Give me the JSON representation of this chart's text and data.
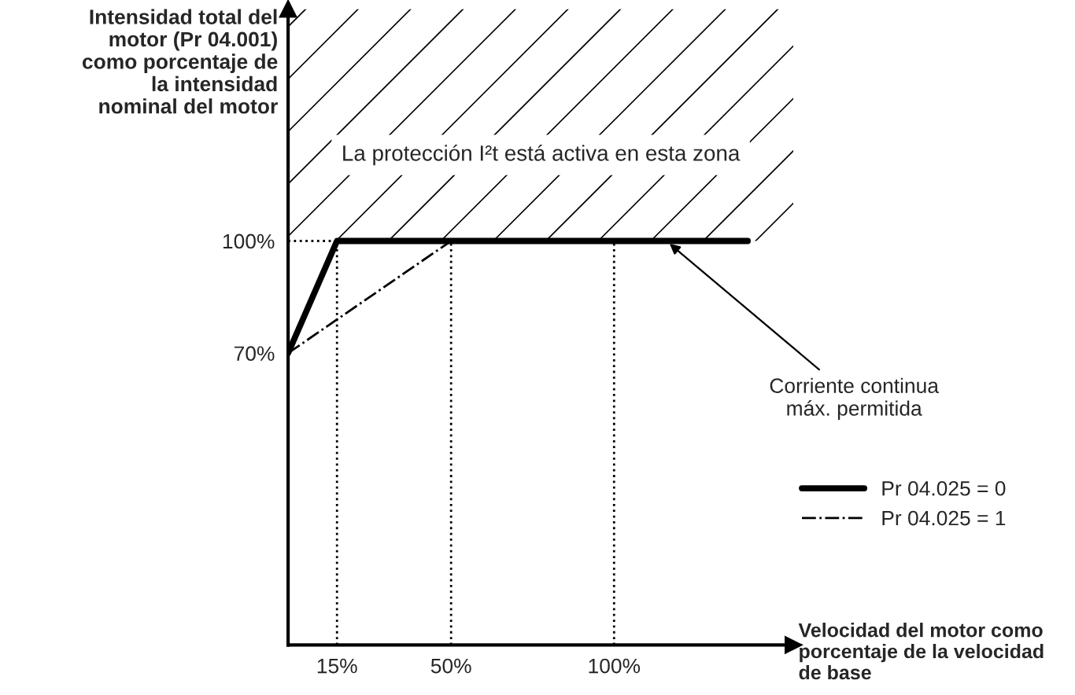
{
  "chart_data": {
    "type": "line",
    "xlabel": "Velocidad del motor como\nporcentaje de la velocidad\nde base",
    "ylabel": "Intensidad total del\nmotor (Pr 04.001)\ncomo porcentaje de\nla intensidad\nnominal del motor",
    "xlim": [
      0,
      155
    ],
    "ylim": [
      -8,
      162
    ],
    "xticks": [
      {
        "value": 15,
        "label": "15%"
      },
      {
        "value": 50,
        "label": "50%"
      },
      {
        "value": 100,
        "label": "100%"
      }
    ],
    "yticks": [
      {
        "value": 70,
        "label": "70%"
      },
      {
        "value": 100,
        "label": "100%"
      }
    ],
    "series": [
      {
        "name": "Pr 04.025 = 0",
        "color": "#000000",
        "line_style": "solid",
        "x": [
          0,
          15,
          141
        ],
        "values": [
          70,
          100,
          100
        ]
      },
      {
        "name": "Pr 04.025 = 1",
        "color": "#000000",
        "line_style": "dashdot",
        "x": [
          0,
          50
        ],
        "values": [
          70,
          100
        ]
      }
    ],
    "ref_lines": [
      {
        "axis": "x",
        "value": 15,
        "line_style": "dotted"
      },
      {
        "axis": "x",
        "value": 50,
        "line_style": "dotted"
      },
      {
        "axis": "x",
        "value": 100,
        "line_style": "dotted"
      },
      {
        "axis": "y",
        "value": 100,
        "line_style": "dotted"
      }
    ],
    "bands": [
      {
        "axis": "y",
        "from": 100,
        "to": 162,
        "label": "La protección I²t está activa en esta zona"
      }
    ],
    "annotations": [
      {
        "text": "Corriente continua\nmáx. permitida",
        "x": 116,
        "y": 100
      }
    ],
    "legend": "right",
    "grid": false,
    "marker": "none"
  }
}
